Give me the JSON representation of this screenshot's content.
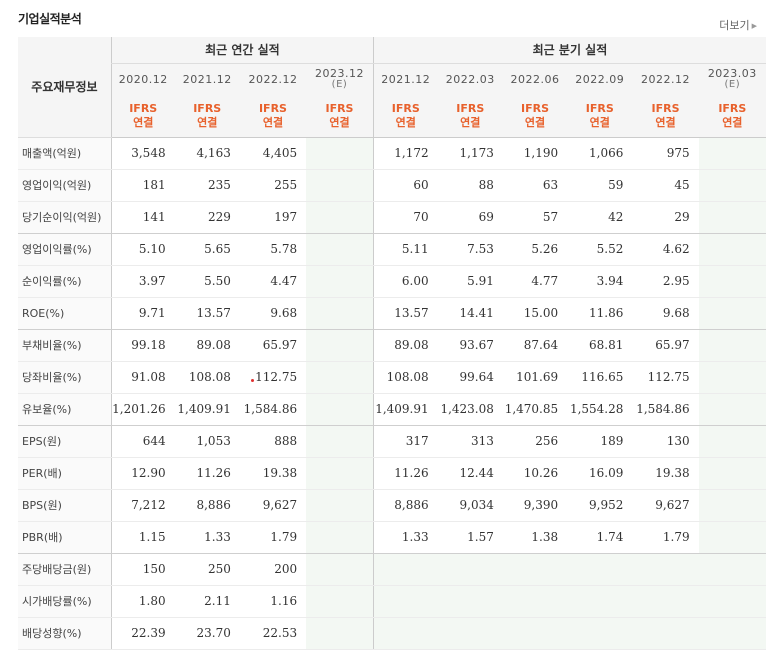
{
  "title": "기업실적분석",
  "more_label": "더보기",
  "corner_label": "주요재무정보",
  "groups": {
    "annual": "최근 연간 실적",
    "quarterly": "최근 분기 실적"
  },
  "annual_dates": [
    {
      "date": "2020.12",
      "est": ""
    },
    {
      "date": "2021.12",
      "est": ""
    },
    {
      "date": "2022.12",
      "est": ""
    },
    {
      "date": "2023.12",
      "est": "(E)"
    }
  ],
  "quarter_dates": [
    {
      "date": "2021.12",
      "est": ""
    },
    {
      "date": "2022.03",
      "est": ""
    },
    {
      "date": "2022.06",
      "est": ""
    },
    {
      "date": "2022.09",
      "est": ""
    },
    {
      "date": "2022.12",
      "est": ""
    },
    {
      "date": "2023.03",
      "est": "(E)"
    }
  ],
  "ifrs": {
    "line1": "IFRS",
    "line2": "연결"
  },
  "rows": [
    {
      "label": "매출액(억원)",
      "annual": [
        "3,548",
        "4,163",
        "4,405",
        ""
      ],
      "quarterly": [
        "1,172",
        "1,173",
        "1,190",
        "1,066",
        "975",
        ""
      ]
    },
    {
      "label": "영업이익(억원)",
      "annual": [
        "181",
        "235",
        "255",
        ""
      ],
      "quarterly": [
        "60",
        "88",
        "63",
        "59",
        "45",
        ""
      ]
    },
    {
      "label": "당기순이익(억원)",
      "annual": [
        "141",
        "229",
        "197",
        ""
      ],
      "quarterly": [
        "70",
        "69",
        "57",
        "42",
        "29",
        ""
      ]
    },
    {
      "label": "영업이익률(%)",
      "annual": [
        "5.10",
        "5.65",
        "5.78",
        ""
      ],
      "quarterly": [
        "5.11",
        "7.53",
        "5.26",
        "5.52",
        "4.62",
        ""
      ]
    },
    {
      "label": "순이익률(%)",
      "annual": [
        "3.97",
        "5.50",
        "4.47",
        ""
      ],
      "quarterly": [
        "6.00",
        "5.91",
        "4.77",
        "3.94",
        "2.95",
        ""
      ]
    },
    {
      "label": "ROE(%)",
      "annual": [
        "9.71",
        "13.57",
        "9.68",
        ""
      ],
      "quarterly": [
        "13.57",
        "14.41",
        "15.00",
        "11.86",
        "9.68",
        ""
      ]
    },
    {
      "label": "부채비율(%)",
      "annual": [
        "99.18",
        "89.08",
        "65.97",
        ""
      ],
      "quarterly": [
        "89.08",
        "93.67",
        "87.64",
        "68.81",
        "65.97",
        ""
      ]
    },
    {
      "label": "당좌비율(%)",
      "annual": [
        "91.08",
        "108.08",
        "112.75",
        ""
      ],
      "quarterly": [
        "108.08",
        "99.64",
        "101.69",
        "116.65",
        "112.75",
        ""
      ]
    },
    {
      "label": "유보율(%)",
      "annual": [
        "1,201.26",
        "1,409.91",
        "1,584.86",
        ""
      ],
      "quarterly": [
        "1,409.91",
        "1,423.08",
        "1,470.85",
        "1,554.28",
        "1,584.86",
        ""
      ]
    },
    {
      "label": "EPS(원)",
      "annual": [
        "644",
        "1,053",
        "888",
        ""
      ],
      "quarterly": [
        "317",
        "313",
        "256",
        "189",
        "130",
        ""
      ]
    },
    {
      "label": "PER(배)",
      "annual": [
        "12.90",
        "11.26",
        "19.38",
        ""
      ],
      "quarterly": [
        "11.26",
        "12.44",
        "10.26",
        "16.09",
        "19.38",
        ""
      ]
    },
    {
      "label": "BPS(원)",
      "annual": [
        "7,212",
        "8,886",
        "9,627",
        ""
      ],
      "quarterly": [
        "8,886",
        "9,034",
        "9,390",
        "9,952",
        "9,627",
        ""
      ]
    },
    {
      "label": "PBR(배)",
      "annual": [
        "1.15",
        "1.33",
        "1.79",
        ""
      ],
      "quarterly": [
        "1.33",
        "1.57",
        "1.38",
        "1.74",
        "1.79",
        ""
      ]
    },
    {
      "label": "주당배당금(원)",
      "annual": [
        "150",
        "250",
        "200",
        ""
      ],
      "quarterly": [
        "",
        "",
        "",
        "",
        "",
        ""
      ]
    },
    {
      "label": "시가배당률(%)",
      "annual": [
        "1.80",
        "2.11",
        "1.16",
        ""
      ],
      "quarterly": [
        "",
        "",
        "",
        "",
        "",
        ""
      ]
    },
    {
      "label": "배당성향(%)",
      "annual": [
        "22.39",
        "23.70",
        "22.53",
        ""
      ],
      "quarterly": [
        "",
        "",
        "",
        "",
        "",
        ""
      ]
    }
  ],
  "colors": {
    "ifrs": "#e8612c",
    "header_bg": "#f5f5f5",
    "estimate_bg": "#f3f8f3"
  }
}
